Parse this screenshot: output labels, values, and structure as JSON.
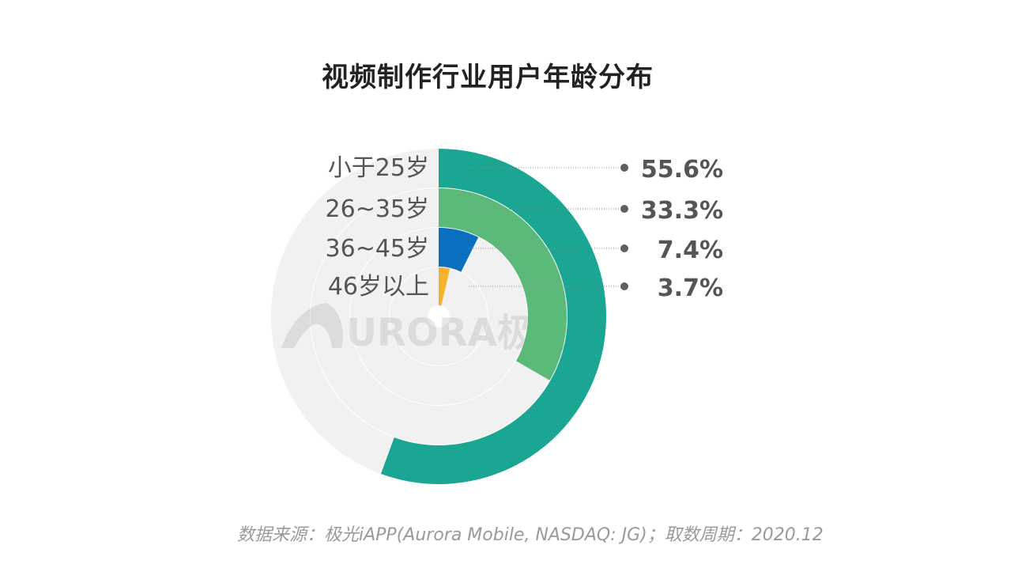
{
  "chart_data": {
    "type": "radial-bar",
    "title": "视频制作行业用户年龄分布",
    "categories": [
      "小于25岁",
      "26~35岁",
      "36~45岁",
      "46岁以上"
    ],
    "values": [
      55.6,
      33.3,
      7.4,
      3.7
    ],
    "value_labels": [
      "55.6%",
      "33.3%",
      "7.4%",
      "3.7%"
    ],
    "unit": "%",
    "max": 100,
    "colors": [
      "#1AA693",
      "#5BB979",
      "#0A6FBF",
      "#F3B12D"
    ],
    "track_color": "#F1F1F1"
  },
  "source": "数据来源：极光iAPP(Aurora Mobile, NASDAQ: JG)；取数周期：2020.12",
  "watermark": {
    "text": "URORA极光",
    "logo": "aurora-logo"
  }
}
